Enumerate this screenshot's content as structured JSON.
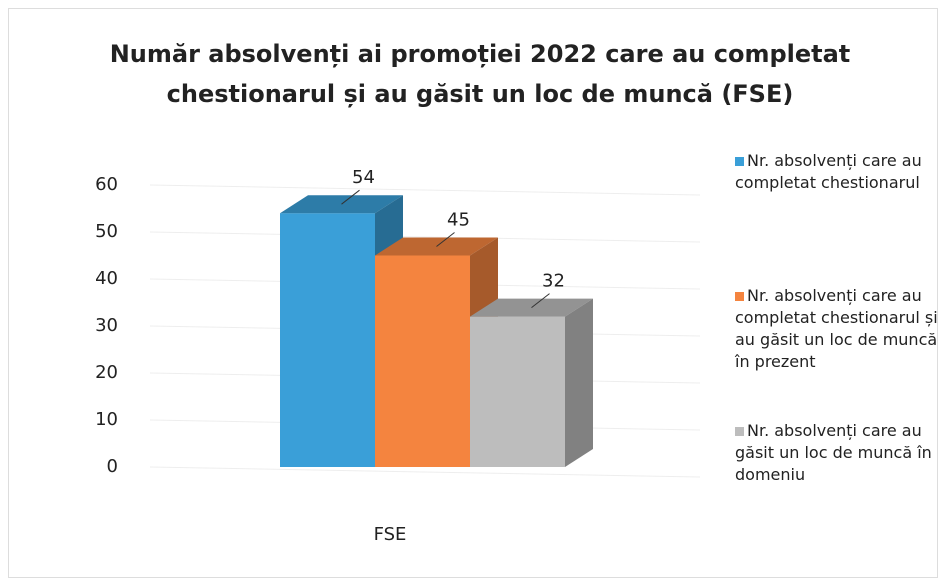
{
  "chart_data": {
    "type": "bar3d",
    "title": "Număr absolvenți ai promoției 2022 care au completat chestionarul și au găsit un loc de muncă (FSE)",
    "categories": [
      "FSE"
    ],
    "series": [
      {
        "name": "Nr. absolvenți care au completat chestionarul",
        "color": "#3a9fd8",
        "values": [
          54
        ]
      },
      {
        "name": "Nr. absolvenți care au completat chestionarul și au găsit un loc de muncă în prezent",
        "color": "#f4843f",
        "values": [
          45
        ]
      },
      {
        "name": "Nr. absolvenți care au găsit un loc de muncă în domeniu",
        "color": "#bdbdbd",
        "values": [
          32
        ]
      }
    ],
    "ylim": [
      0,
      60
    ],
    "yticks": [
      0,
      10,
      20,
      30,
      40,
      50,
      60
    ],
    "grid": true,
    "legend": "right"
  }
}
